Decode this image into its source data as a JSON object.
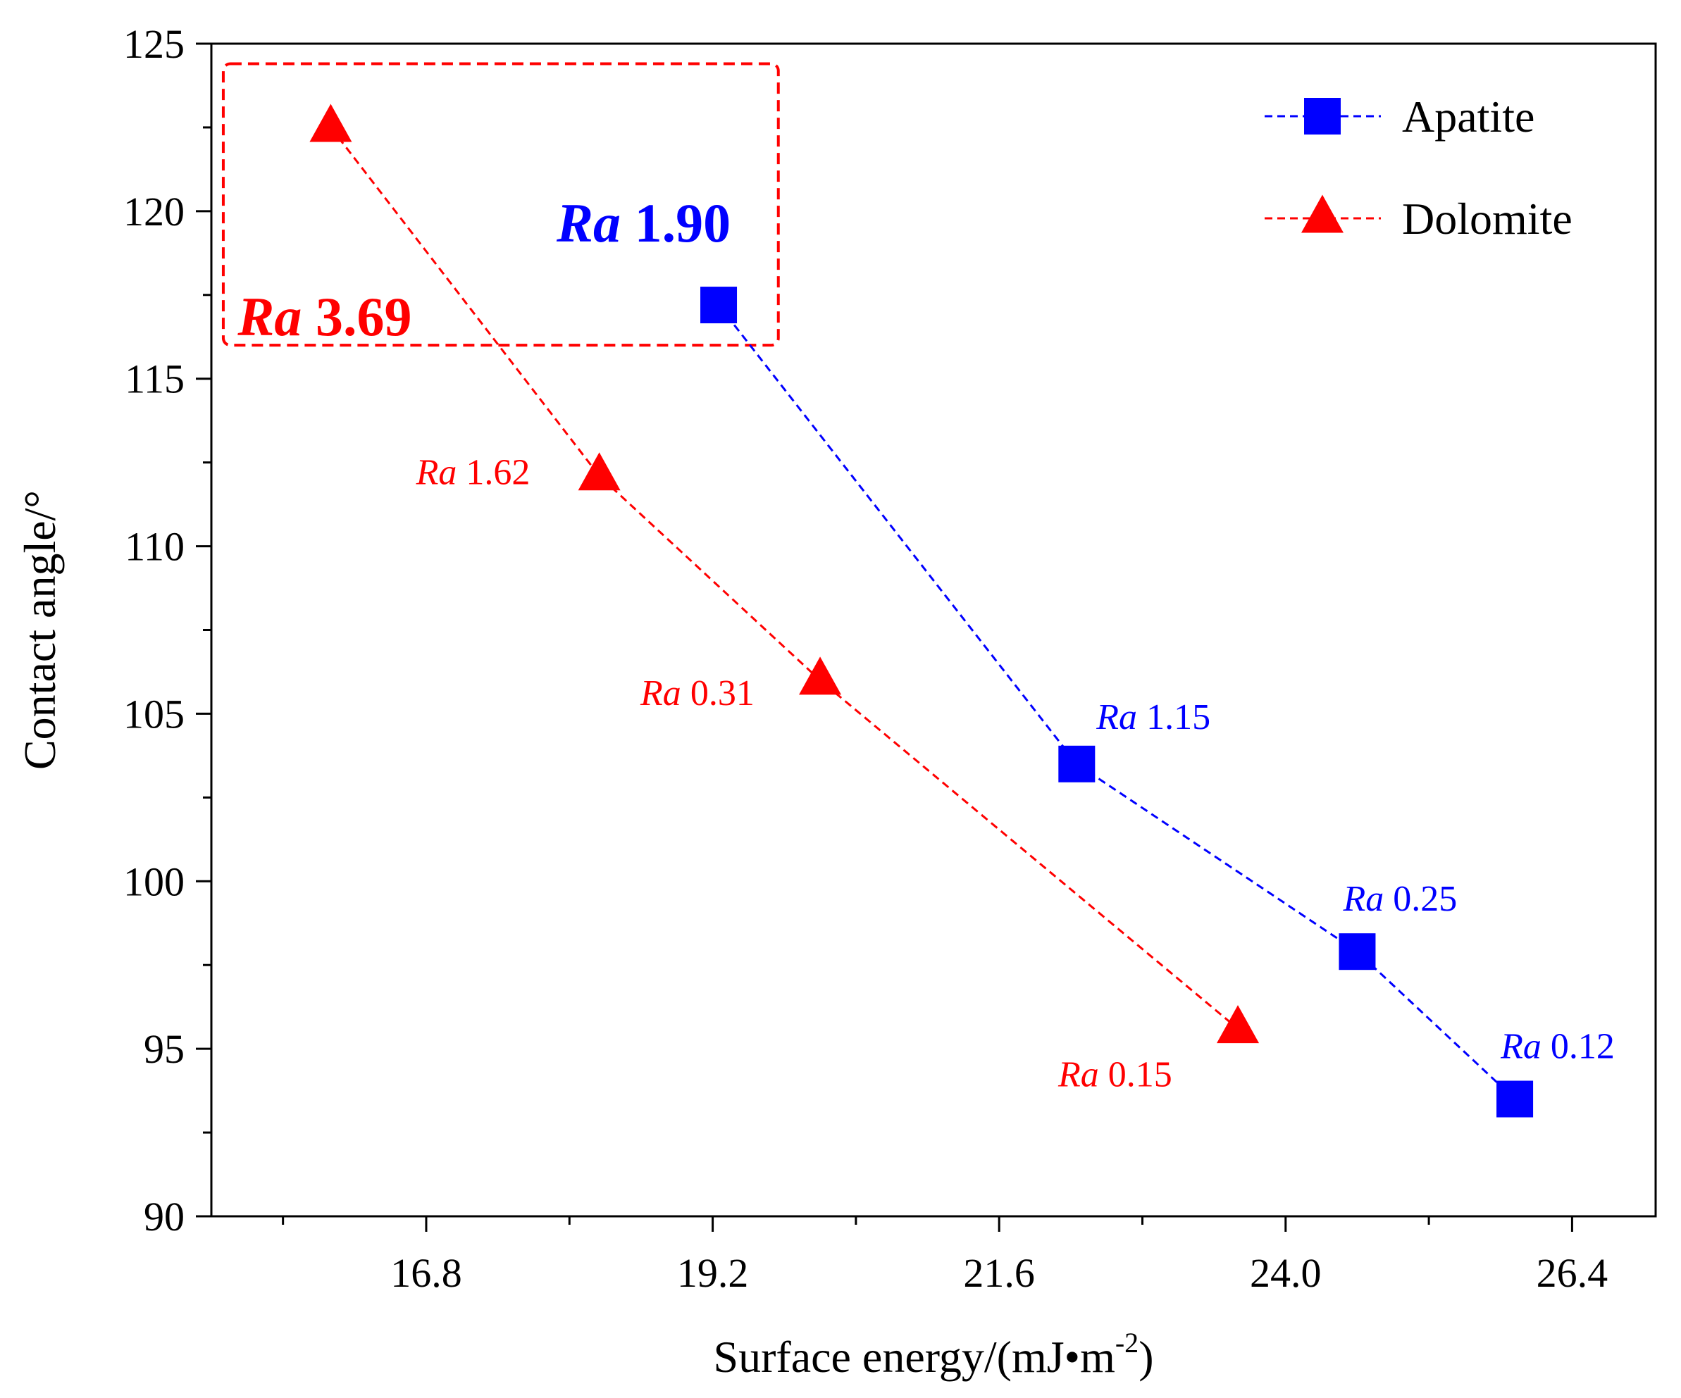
{
  "colors": {
    "apatite": "#0000ff",
    "dolomite": "#ff0000",
    "axis": "#000000"
  },
  "chart_data": {
    "type": "scatter",
    "xlabel": "Surface energy/(mJ•m",
    "xlabel_sup": "-2",
    "xlabel_tail": ")",
    "ylabel": "Contact angle/°",
    "xlim": [
      15.0,
      27.1
    ],
    "ylim": [
      90,
      125
    ],
    "x_ticks": [
      16.8,
      19.2,
      21.6,
      24.0,
      26.4
    ],
    "x_tick_labels": [
      "16.8",
      "19.2",
      "21.6",
      "24.0",
      "26.4"
    ],
    "x_minor_ticks": [
      15.6,
      18.0,
      20.4,
      22.8,
      25.2
    ],
    "y_ticks": [
      90,
      95,
      100,
      105,
      110,
      115,
      120,
      125
    ],
    "y_tick_labels": [
      "90",
      "95",
      "100",
      "105",
      "110",
      "115",
      "120",
      "125"
    ],
    "y_minor_ticks": [
      92.5,
      97.5,
      102.5,
      107.5,
      112.5,
      117.5,
      122.5
    ],
    "legend_position": "top-right",
    "series": [
      {
        "name": "Apatite",
        "marker": "square",
        "x": [
          19.25,
          22.25,
          24.6,
          25.92
        ],
        "y": [
          117.2,
          103.5,
          97.9,
          93.5
        ],
        "labels": [
          {
            "italic": "Ra",
            "value": "1.90",
            "bold": true
          },
          {
            "italic": "Ra",
            "value": "1.15",
            "bold": false
          },
          {
            "italic": "Ra",
            "value": "0.25",
            "bold": false
          },
          {
            "italic": "Ra",
            "value": "0.12",
            "bold": false
          }
        ]
      },
      {
        "name": "Dolomite",
        "marker": "triangle",
        "x": [
          16.0,
          18.25,
          20.1,
          23.6
        ],
        "y": [
          122.5,
          112.1,
          106.0,
          95.6
        ],
        "labels": [
          {
            "italic": "Ra",
            "value": "3.69",
            "bold": true
          },
          {
            "italic": "Ra",
            "value": "1.62",
            "bold": false
          },
          {
            "italic": "Ra",
            "value": "0.31",
            "bold": false
          },
          {
            "italic": "Ra",
            "value": "0.15",
            "bold": false
          }
        ]
      }
    ],
    "highlight_box": {
      "x": [
        15.1,
        19.75
      ],
      "y": [
        116.0,
        124.4
      ]
    }
  }
}
